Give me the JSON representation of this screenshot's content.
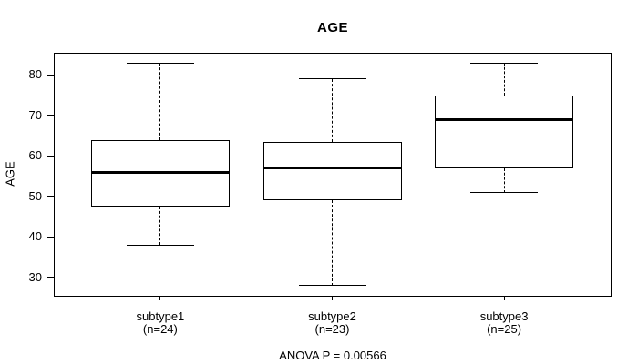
{
  "chart_data": {
    "type": "boxplot",
    "title": "AGE",
    "ylabel": "AGE",
    "xlabel": "",
    "footer": "ANOVA P = 0.00566",
    "yticks": [
      30,
      40,
      50,
      60,
      70,
      80
    ],
    "ylim": [
      25.5,
      85.5
    ],
    "grid": false,
    "legend": "none",
    "groups": [
      {
        "label": "subtype1",
        "n_label": "(n=24)",
        "n": 24,
        "whisker_low": 38,
        "q1": 47.5,
        "median": 56,
        "q3": 64,
        "whisker_high": 83
      },
      {
        "label": "subtype2",
        "n_label": "(n=23)",
        "n": 23,
        "whisker_low": 28,
        "q1": 49,
        "median": 57,
        "q3": 63.5,
        "whisker_high": 79
      },
      {
        "label": "subtype3",
        "n_label": "(n=25)",
        "n": 25,
        "whisker_low": 51,
        "q1": 57,
        "median": 69,
        "q3": 75,
        "whisker_high": 83
      }
    ],
    "colors": {
      "line": "#000000",
      "median": "#000000",
      "box_fill": "#ffffff",
      "background": "#ffffff",
      "text": "#000000"
    }
  }
}
